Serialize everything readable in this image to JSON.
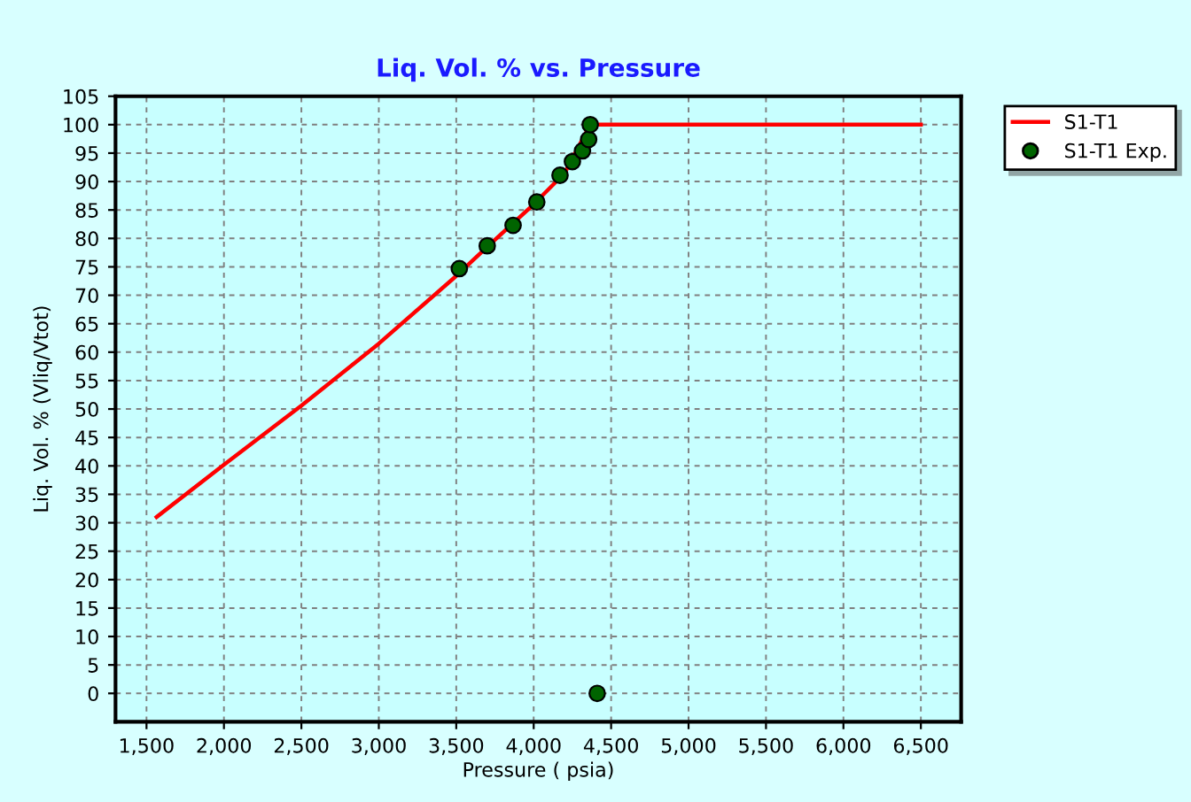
{
  "chart_data": {
    "type": "line",
    "title": "Liq. Vol. % vs. Pressure",
    "xlabel": "Pressure ( psia)",
    "ylabel": "Liq. Vol. % (Vliq/Vtot)",
    "series": [
      {
        "name": "S1-T1",
        "color": "#ff0000",
        "marker": "none",
        "x": [
          1565,
          2000,
          2500,
          3000,
          3500,
          3700,
          4000,
          4200,
          4365,
          6500
        ],
        "values": [
          31,
          40.2,
          50.6,
          61.5,
          73.4,
          78.5,
          86,
          91.5,
          100,
          100
        ]
      },
      {
        "name": "S1-T1 Exp.",
        "type": "scatter",
        "color": "#006400",
        "marker": "circle",
        "x": [
          3520,
          3700,
          3867,
          4020,
          4170,
          4250,
          4315,
          4355,
          4365,
          4410
        ],
        "values": [
          74.7,
          78.7,
          82.3,
          86.4,
          91.1,
          93.5,
          95.4,
          97.4,
          100,
          0
        ]
      }
    ],
    "xlim": [
      1300,
      6760
    ],
    "xticks": [
      {
        "value": 1500,
        "label": "1,500"
      },
      {
        "value": 2000,
        "label": "2,000"
      },
      {
        "value": 2500,
        "label": "2,500"
      },
      {
        "value": 3000,
        "label": "3,000"
      },
      {
        "value": 3500,
        "label": "3,500"
      },
      {
        "value": 4000,
        "label": "4,000"
      },
      {
        "value": 4500,
        "label": "4,500"
      },
      {
        "value": 5000,
        "label": "5,000"
      },
      {
        "value": 5500,
        "label": "5,500"
      },
      {
        "value": 6000,
        "label": "6,000"
      },
      {
        "value": 6500,
        "label": "6,500"
      }
    ],
    "ylim": [
      -5,
      105
    ],
    "yticks": [
      0,
      5,
      10,
      15,
      20,
      25,
      30,
      35,
      40,
      45,
      50,
      55,
      60,
      65,
      70,
      75,
      80,
      85,
      90,
      95,
      100,
      105
    ],
    "grid": true,
    "legend": "top right"
  }
}
